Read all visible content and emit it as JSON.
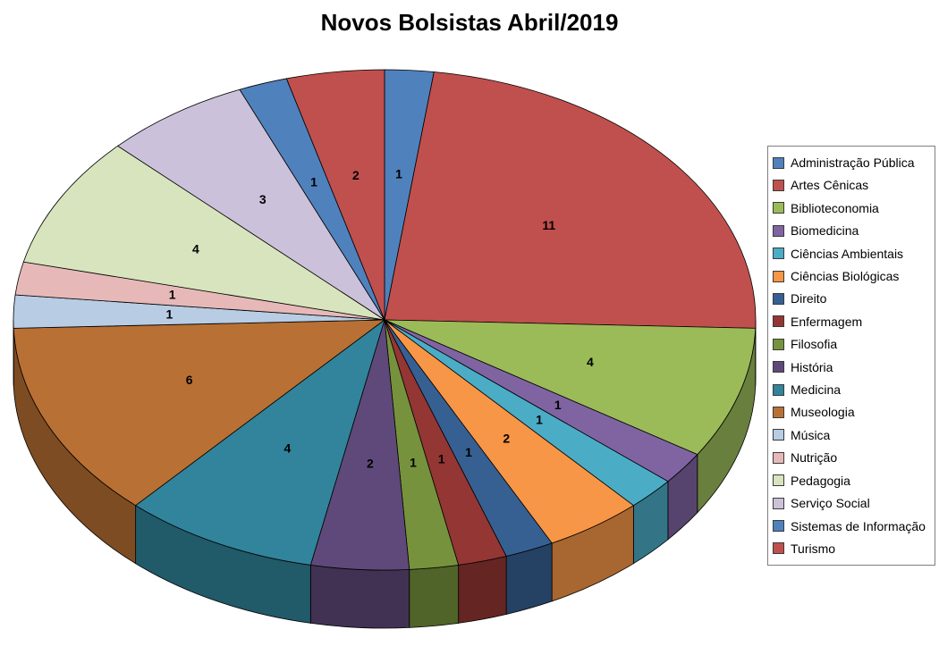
{
  "title": "Novos Bolsistas Abril/2019",
  "chart_data": {
    "type": "pie",
    "style": "3d-pie",
    "title": "Novos Bolsistas Abril/2019",
    "categories": [
      "Administração Pública",
      "Artes Cênicas",
      "Biblioteconomia",
      "Biomedicina",
      "Ciências Ambientais",
      "Ciências Biológicas",
      "Direito",
      "Enfermagem",
      "Filosofia",
      "História",
      "Medicina",
      "Museologia",
      "Música",
      "Nutrição",
      "Pedagogia",
      "Serviço Social",
      "Sistemas de Informação",
      "Turismo"
    ],
    "values": [
      1,
      11,
      4,
      1,
      1,
      2,
      1,
      1,
      1,
      2,
      4,
      6,
      1,
      1,
      4,
      3,
      1,
      2
    ],
    "total": 47,
    "colors": [
      "#4F81BD",
      "#C0504D",
      "#9BBB59",
      "#8064A2",
      "#4BACC6",
      "#F79646",
      "#376092",
      "#943634",
      "#76923C",
      "#5F497A",
      "#31849B",
      "#B97034",
      "#B8CCE4",
      "#E6B9B8",
      "#D7E4BD",
      "#CCC1DA",
      "#4F81BD",
      "#C0504D"
    ],
    "data_labels": "value",
    "start_angle_deg": -90,
    "direction": "clockwise",
    "legend_position": "right",
    "background": "#FFFFFF"
  }
}
